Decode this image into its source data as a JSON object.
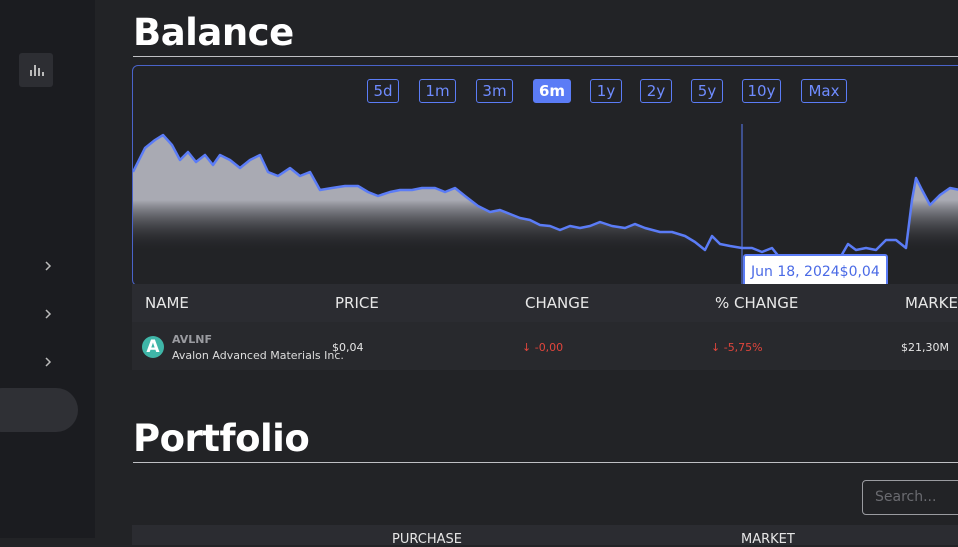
{
  "balance": {
    "title": "Balance",
    "ranges": [
      "5d",
      "1m",
      "3m",
      "6m",
      "1y",
      "2y",
      "5y",
      "10y",
      "Max"
    ],
    "active_range": "6m",
    "tooltip": {
      "date": "Jun 18, 2024",
      "value": "$0,04"
    },
    "table": {
      "headers": [
        "NAME",
        "PRICE",
        "CHANGE",
        "% CHANGE",
        "MARKET CAP"
      ],
      "rows": [
        {
          "avatar": "A",
          "symbol": "AVLNF",
          "name": "Avalon Advanced Materials Inc.",
          "price": "$0,04",
          "change": "-0,00",
          "percent_change": "-5,75%",
          "market_cap": "$21,30M"
        }
      ]
    }
  },
  "portfolio": {
    "title": "Portfolio",
    "search_placeholder": "Search...",
    "headers": [
      "PURCHASE",
      "MARKET"
    ]
  }
}
